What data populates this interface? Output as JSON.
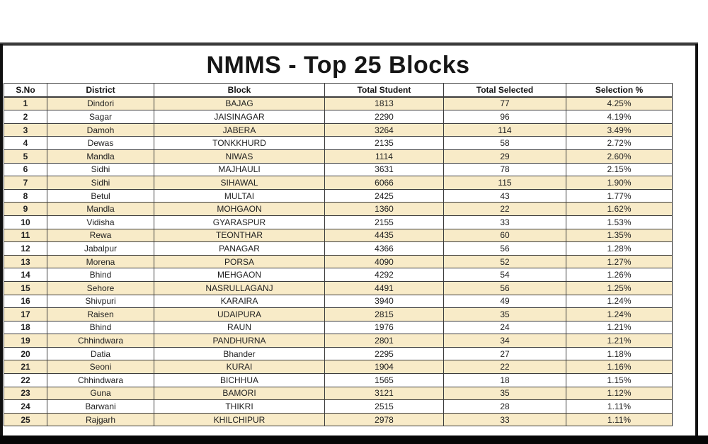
{
  "page": {
    "title": "NMMS - Top 25 Blocks"
  },
  "colors": {
    "row_shade": "#f8ebc8",
    "row_plain": "#ffffff",
    "table_border": "#3c3c3c",
    "frame_black": "#101010",
    "bottom_bar": "#060606",
    "text": "#212121"
  },
  "table": {
    "columns": [
      "S.No",
      "District",
      "Block",
      "Total Student",
      "Total Selected",
      "Selection %"
    ],
    "column_keys": [
      "sno",
      "district",
      "block",
      "total-student",
      "total-selected",
      "selection-pct"
    ],
    "rows": [
      [
        "1",
        "Dindori",
        "BAJAG",
        "1813",
        "77",
        "4.25%"
      ],
      [
        "2",
        "Sagar",
        "JAISINAGAR",
        "2290",
        "96",
        "4.19%"
      ],
      [
        "3",
        "Damoh",
        "JABERA",
        "3264",
        "114",
        "3.49%"
      ],
      [
        "4",
        "Dewas",
        "TONKKHURD",
        "2135",
        "58",
        "2.72%"
      ],
      [
        "5",
        "Mandla",
        "NIWAS",
        "1114",
        "29",
        "2.60%"
      ],
      [
        "6",
        "Sidhi",
        "MAJHAULI",
        "3631",
        "78",
        "2.15%"
      ],
      [
        "7",
        "Sidhi",
        "SIHAWAL",
        "6066",
        "115",
        "1.90%"
      ],
      [
        "8",
        "Betul",
        "MULTAI",
        "2425",
        "43",
        "1.77%"
      ],
      [
        "9",
        "Mandla",
        "MOHGAON",
        "1360",
        "22",
        "1.62%"
      ],
      [
        "10",
        "Vidisha",
        "GYARASPUR",
        "2155",
        "33",
        "1.53%"
      ],
      [
        "11",
        "Rewa",
        "TEONTHAR",
        "4435",
        "60",
        "1.35%"
      ],
      [
        "12",
        "Jabalpur",
        "PANAGAR",
        "4366",
        "56",
        "1.28%"
      ],
      [
        "13",
        "Morena",
        "PORSA",
        "4090",
        "52",
        "1.27%"
      ],
      [
        "14",
        "Bhind",
        "MEHGAON",
        "4292",
        "54",
        "1.26%"
      ],
      [
        "15",
        "Sehore",
        "NASRULLAGANJ",
        "4491",
        "56",
        "1.25%"
      ],
      [
        "16",
        "Shivpuri",
        "KARAIRA",
        "3940",
        "49",
        "1.24%"
      ],
      [
        "17",
        "Raisen",
        "UDAIPURA",
        "2815",
        "35",
        "1.24%"
      ],
      [
        "18",
        "Bhind",
        "RAUN",
        "1976",
        "24",
        "1.21%"
      ],
      [
        "19",
        "Chhindwara",
        "PANDHURNA",
        "2801",
        "34",
        "1.21%"
      ],
      [
        "20",
        "Datia",
        "Bhander",
        "2295",
        "27",
        "1.18%"
      ],
      [
        "21",
        "Seoni",
        "KURAI",
        "1904",
        "22",
        "1.16%"
      ],
      [
        "22",
        "Chhindwara",
        "BICHHUA",
        "1565",
        "18",
        "1.15%"
      ],
      [
        "23",
        "Guna",
        "BAMORI",
        "3121",
        "35",
        "1.12%"
      ],
      [
        "24",
        "Barwani",
        "THIKRI",
        "2515",
        "28",
        "1.11%"
      ],
      [
        "25",
        "Rajgarh",
        "KHILCHIPUR",
        "2978",
        "33",
        "1.11%"
      ]
    ]
  }
}
